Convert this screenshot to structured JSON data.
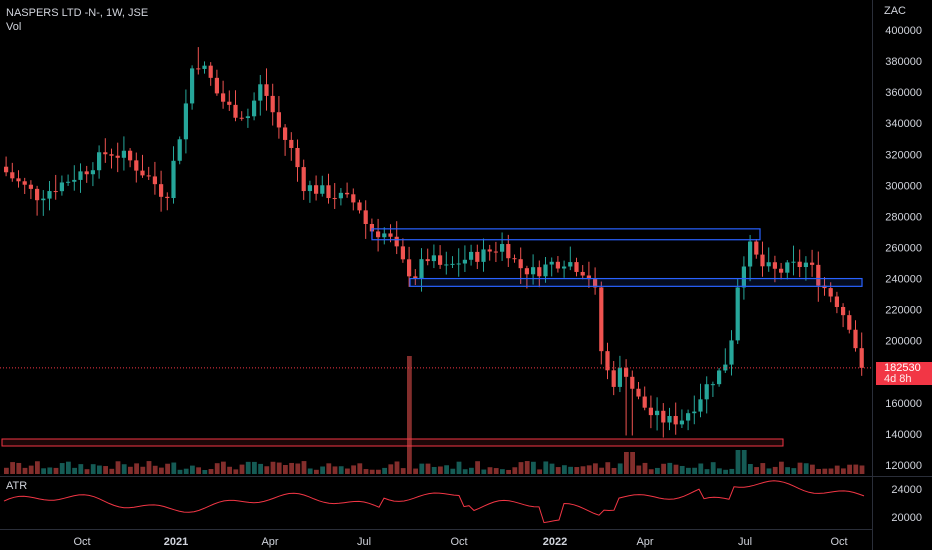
{
  "legend": {
    "symbol": "NASPERS LTD -N-, 1W, JSE",
    "volume_label": "Vol"
  },
  "currency": "ZAC",
  "atr_label": "ATR",
  "price_tag": {
    "price": "182530",
    "countdown": "4d 8h"
  },
  "colors": {
    "up": "#26a69a",
    "down": "#ef5350",
    "zone_box": "#2962ff",
    "volume_box": "#f23645",
    "atr_line": "#f23645"
  },
  "chart_data": [
    {
      "type": "candlestick",
      "title": "NASPERS LTD -N-, 1W, JSE",
      "y_unit": "ZAC",
      "y_ticks": [
        400000,
        380000,
        360000,
        340000,
        320000,
        300000,
        280000,
        260000,
        240000,
        220000,
        200000,
        180000,
        160000,
        140000,
        120000
      ],
      "x_ticks": [
        "Oct",
        "2021",
        "Apr",
        "Jul",
        "Oct",
        "2022",
        "Apr",
        "Jul",
        "Oct"
      ],
      "last_price": 182530,
      "open_oct2020": 312000,
      "high_jan2021": 389000,
      "high_jun2022": 285000,
      "low_mar2022": 139000,
      "resistance_zone": [
        265000,
        272000
      ],
      "support_zone": [
        235000,
        240000
      ]
    },
    {
      "type": "bar",
      "title": "Vol",
      "note": "weekly volume, largest spike around Aug 2021"
    },
    {
      "type": "line",
      "title": "ATR",
      "y_ticks": [
        24000,
        20000
      ]
    }
  ]
}
